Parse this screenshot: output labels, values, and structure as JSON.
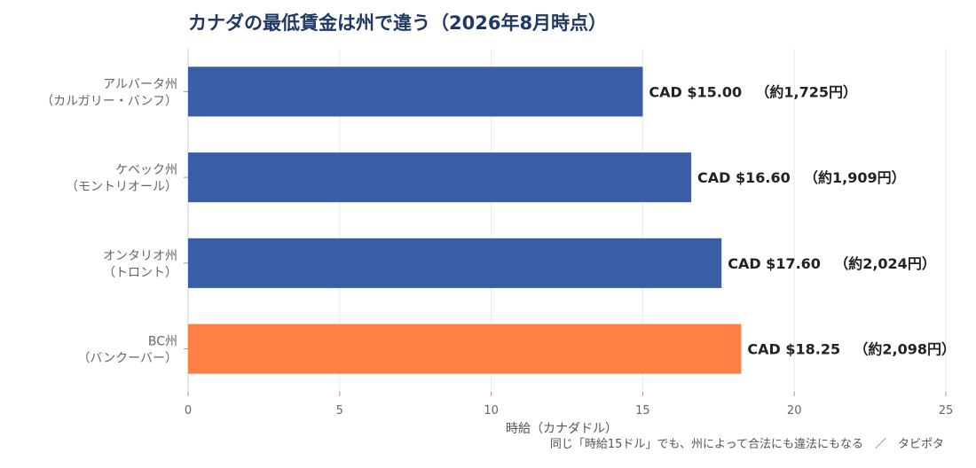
{
  "chart_data": {
    "type": "bar",
    "orientation": "horizontal",
    "title": "カナダの最低賃金は州で違う（2026年8月時点）",
    "xlabel": "時給（カナダドル）",
    "ylabel": "",
    "xlim": [
      0,
      25
    ],
    "xticks": [
      0,
      5,
      10,
      15,
      20,
      25
    ],
    "grid": true,
    "categories": [
      [
        "アルバータ州",
        "（カルガリー・バンフ）"
      ],
      [
        "ケベック州",
        "（モントリオール）"
      ],
      [
        "オンタリオ州",
        "（トロント）"
      ],
      [
        "BC州",
        "（バンクーバー）"
      ]
    ],
    "values": [
      15.0,
      16.6,
      17.6,
      18.25
    ],
    "value_labels": [
      "CAD $15.00",
      "CAD $16.60",
      "CAD $17.60",
      "CAD $18.25"
    ],
    "yen_labels": [
      "（約1,725円）",
      "（約1,909円）",
      "（約2,024円）",
      "（約2,098円）"
    ],
    "colors": [
      "#3a5ea5",
      "#3a5ea5",
      "#3a5ea5",
      "#ff7f45"
    ],
    "footnote": "同じ「時給15ドル」でも、州によって合法にも違法にもなる　／　タビポタ"
  }
}
